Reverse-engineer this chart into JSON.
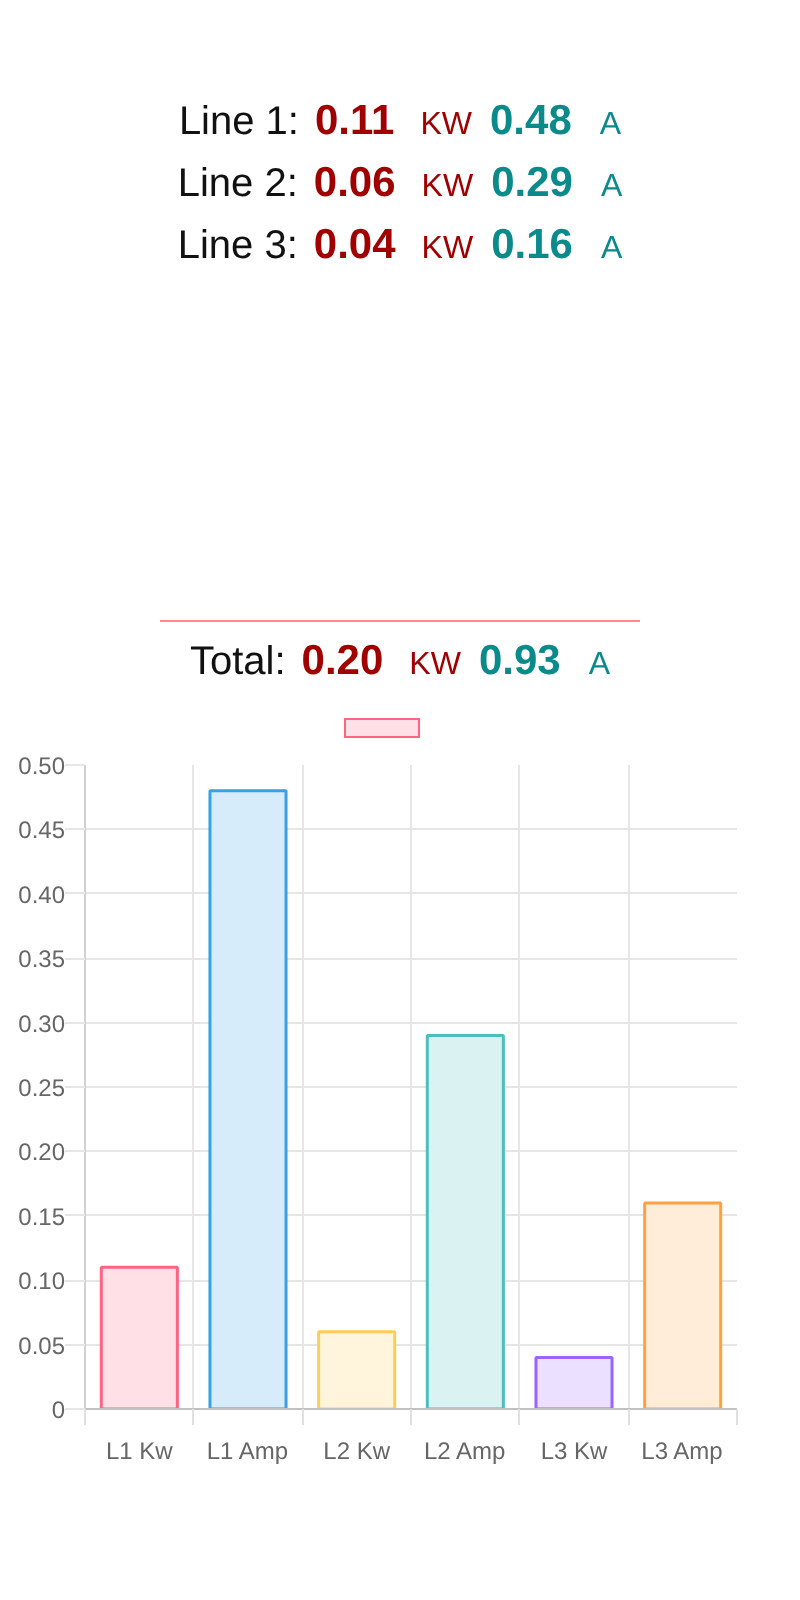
{
  "chart_data": {
    "type": "bar",
    "annotations": [
      "Line 1: 0.11 KW 0.48 A",
      "Line 2: 0.06 KW 0.29 A",
      "Line 3: 0.04 KW 0.16 A",
      "Total: 0.20 KW 0.93 A"
    ],
    "categories": [
      "L1 Kw",
      "L1 Amp",
      "L2 Kw",
      "L2 Amp",
      "L3 Kw",
      "L3 Amp"
    ],
    "values": [
      0.11,
      0.48,
      0.06,
      0.29,
      0.04,
      0.16
    ],
    "colors": [
      "#ffe0e6",
      "#d7ecfb",
      "#fff5dd",
      "#dbf2f2",
      "#ebe0ff",
      "#ffecd9"
    ],
    "ylim": [
      0,
      0.5
    ],
    "yticks": [
      0,
      0.05,
      {
        "value": 0.1,
        "label": "0.10"
      },
      0.15,
      {
        "value": 0.2,
        "label": "0.20"
      },
      0.25,
      {
        "value": 0.3,
        "label": "0.30"
      },
      0.35,
      {
        "value": 0.4,
        "label": "0.40"
      },
      0.45,
      {
        "value": 0.5,
        "label": "0.50"
      }
    ],
    "grid": true
  }
}
